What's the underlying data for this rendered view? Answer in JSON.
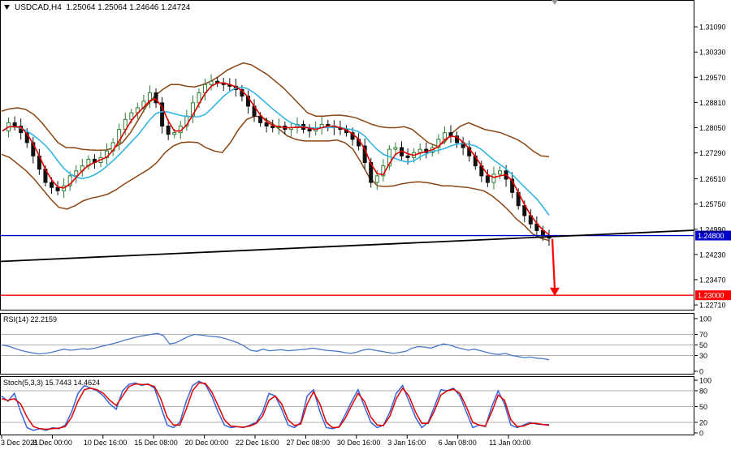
{
  "header": {
    "symbol_line": "USDCAD,H4  1.25064 1.25064 1.24646 1.24724"
  },
  "colors": {
    "price_line": "#0000cc",
    "target_line": "#ff0000",
    "trend_line": "#000000",
    "bollinger": "#8b4513",
    "ma_fast": "#e00000",
    "ma_slow": "#33b5e5",
    "rsi_line": "#4a78c8",
    "stoch_main": "#3a64d8",
    "stoch_signal": "#e00000",
    "candle_bull": "#2e7d32",
    "candle_bear": "#111111"
  },
  "chart_data": [
    {
      "type": "candlestick",
      "title": "USDCAD,H4",
      "ohlc_last": {
        "open": 1.25064,
        "high": 1.25064,
        "low": 1.24646,
        "close": 1.24724
      },
      "x_tick_labels": [
        "3 Dec 2021",
        "8 Dec 00:00",
        "10 Dec 16:00",
        "15 Dec 08:00",
        "20 Dec 00:00",
        "22 Dec 16:00",
        "27 Dec 08:00",
        "30 Dec 16:00",
        "3 Jan 16:00",
        "6 Jan 08:00",
        "11 Jan 00:00"
      ],
      "y_tick_labels": [
        "1.31090",
        "1.30330",
        "1.29570",
        "1.28810",
        "1.28050",
        "1.27290",
        "1.26510",
        "1.25750",
        "1.24990",
        "1.24230",
        "1.23470",
        "1.22710"
      ],
      "ylim": [
        1.2259,
        1.3185
      ],
      "price_close_path": [
        1.2795,
        1.282,
        1.281,
        1.279,
        1.276,
        1.272,
        1.268,
        1.264,
        1.2625,
        1.2615,
        1.263,
        1.266,
        1.2675,
        1.269,
        1.271,
        1.27,
        1.2715,
        1.2735,
        1.276,
        1.28,
        1.283,
        1.285,
        1.2865,
        1.2885,
        1.291,
        1.288,
        1.281,
        1.2785,
        1.279,
        1.281,
        1.284,
        1.288,
        1.291,
        1.2935,
        1.2945,
        1.294,
        1.2935,
        1.293,
        1.292,
        1.29,
        1.287,
        1.284,
        1.282,
        1.281,
        1.2805,
        1.281,
        1.28,
        1.2805,
        1.2815,
        1.28,
        1.2795,
        1.2805,
        1.2815,
        1.281,
        1.2805,
        1.28,
        1.279,
        1.277,
        1.275,
        1.27,
        1.264,
        1.266,
        1.269,
        1.274,
        1.2745,
        1.272,
        1.2715,
        1.273,
        1.274,
        1.273,
        1.2745,
        1.277,
        1.279,
        1.278,
        1.276,
        1.2745,
        1.272,
        1.269,
        1.266,
        1.264,
        1.2665,
        1.2675,
        1.265,
        1.261,
        1.257,
        1.254,
        1.2515,
        1.2495,
        1.248,
        1.2472
      ],
      "bollinger_upper": [
        1.2855,
        1.2862,
        1.2865,
        1.286,
        1.2845,
        1.282,
        1.279,
        1.276,
        1.2745,
        1.2745,
        1.274,
        1.2738,
        1.2737,
        1.2738,
        1.2745,
        1.276,
        1.279,
        1.283,
        1.287,
        1.29,
        1.292,
        1.2935,
        1.2935,
        1.293,
        1.2928,
        1.2935,
        1.2945,
        1.296,
        1.2978,
        1.299,
        1.3,
        1.2995,
        1.298,
        1.2965,
        1.2945,
        1.2925,
        1.29,
        1.2875,
        1.285,
        1.284,
        1.284,
        1.2842,
        1.2843,
        1.284,
        1.2835,
        1.2825,
        1.2815,
        1.2808,
        1.2805,
        1.2805,
        1.2808,
        1.28,
        1.278,
        1.276,
        1.275,
        1.276,
        1.279,
        1.281,
        1.282,
        1.281,
        1.28,
        1.2795,
        1.279,
        1.278,
        1.277,
        1.2755,
        1.2735,
        1.272,
        1.2718
      ],
      "bollinger_lower": [
        1.2725,
        1.2715,
        1.2695,
        1.2675,
        1.265,
        1.262,
        1.259,
        1.2565,
        1.256,
        1.257,
        1.2585,
        1.2593,
        1.2598,
        1.2605,
        1.2618,
        1.2635,
        1.265,
        1.2665,
        1.268,
        1.27,
        1.273,
        1.275,
        1.276,
        1.2762,
        1.276,
        1.2745,
        1.2735,
        1.273,
        1.276,
        1.28,
        1.283,
        1.284,
        1.2835,
        1.282,
        1.28,
        1.278,
        1.277,
        1.2765,
        1.2765,
        1.2765,
        1.2765,
        1.2768,
        1.276,
        1.274,
        1.27,
        1.2655,
        1.263,
        1.2628,
        1.263,
        1.2636,
        1.264,
        1.2642,
        1.264,
        1.2635,
        1.263,
        1.263,
        1.2627,
        1.2625,
        1.262,
        1.2615,
        1.26,
        1.258,
        1.2557,
        1.253,
        1.251,
        1.2485,
        1.2472,
        1.2465
      ],
      "levels": [
        {
          "name": "current_price",
          "value": 1.248,
          "label": "1.24800"
        },
        {
          "name": "target",
          "value": 1.23,
          "label": "1.23000"
        }
      ],
      "trend_line": {
        "from": 1.2402,
        "to": 1.2496
      }
    },
    {
      "type": "line",
      "title": "RSI(14) 22.2159",
      "ylim": [
        0,
        100
      ],
      "y_tick_labels": [
        "100",
        "70",
        "50",
        "30",
        "0"
      ],
      "levels": [
        70,
        50,
        30
      ],
      "values": [
        50,
        48,
        44,
        40,
        37,
        35,
        33,
        34,
        36,
        39,
        42,
        40,
        41,
        43,
        42,
        44,
        47,
        50,
        53,
        56,
        60,
        63,
        66,
        68,
        70,
        72,
        68,
        52,
        54,
        60,
        66,
        70,
        69,
        67,
        66,
        65,
        62,
        58,
        54,
        48,
        40,
        38,
        42,
        39,
        40,
        41,
        39,
        40,
        41,
        42,
        44,
        42,
        40,
        39,
        38,
        36,
        34,
        36,
        40,
        42,
        40,
        38,
        36,
        34,
        36,
        38,
        44,
        47,
        46,
        44,
        48,
        52,
        50,
        46,
        43,
        40,
        42,
        39,
        36,
        33,
        32,
        34,
        30,
        28,
        26,
        27,
        25,
        24,
        22
      ]
    },
    {
      "type": "line",
      "title": "Stoch(5,3,3) 15.7443 14.4624",
      "ylim": [
        0,
        100
      ],
      "y_tick_labels": [
        "100",
        "80",
        "50",
        "20",
        "0"
      ],
      "levels": [
        80,
        50,
        20
      ],
      "series": [
        {
          "name": "main",
          "values": [
            70,
            60,
            75,
            40,
            10,
            5,
            8,
            5,
            10,
            8,
            15,
            40,
            75,
            90,
            85,
            80,
            70,
            55,
            45,
            80,
            92,
            95,
            90,
            93,
            85,
            50,
            15,
            10,
            20,
            60,
            90,
            98,
            92,
            70,
            40,
            15,
            10,
            12,
            10,
            15,
            20,
            40,
            75,
            70,
            45,
            15,
            10,
            20,
            70,
            82,
            40,
            10,
            8,
            12,
            35,
            60,
            82,
            50,
            20,
            10,
            15,
            40,
            75,
            90,
            60,
            30,
            10,
            20,
            50,
            82,
            80,
            85,
            70,
            40,
            10,
            15,
            12,
            50,
            80,
            55,
            15,
            10,
            15,
            20,
            17,
            16,
            15.7443
          ]
        },
        {
          "name": "signal",
          "values": [
            65,
            62,
            65,
            55,
            30,
            12,
            8,
            7,
            8,
            9,
            12,
            30,
            60,
            82,
            85,
            82,
            75,
            62,
            52,
            70,
            88,
            93,
            92,
            92,
            88,
            65,
            30,
            15,
            15,
            45,
            80,
            95,
            94,
            78,
            52,
            25,
            13,
            12,
            11,
            13,
            18,
            32,
            62,
            70,
            55,
            25,
            14,
            17,
            55,
            78,
            55,
            20,
            10,
            11,
            28,
            52,
            75,
            60,
            30,
            15,
            14,
            32,
            65,
            85,
            70,
            40,
            18,
            18,
            42,
            72,
            80,
            83,
            75,
            50,
            20,
            15,
            13,
            40,
            72,
            62,
            25,
            12,
            13,
            18,
            18,
            16,
            14.4624
          ]
        }
      ]
    }
  ]
}
